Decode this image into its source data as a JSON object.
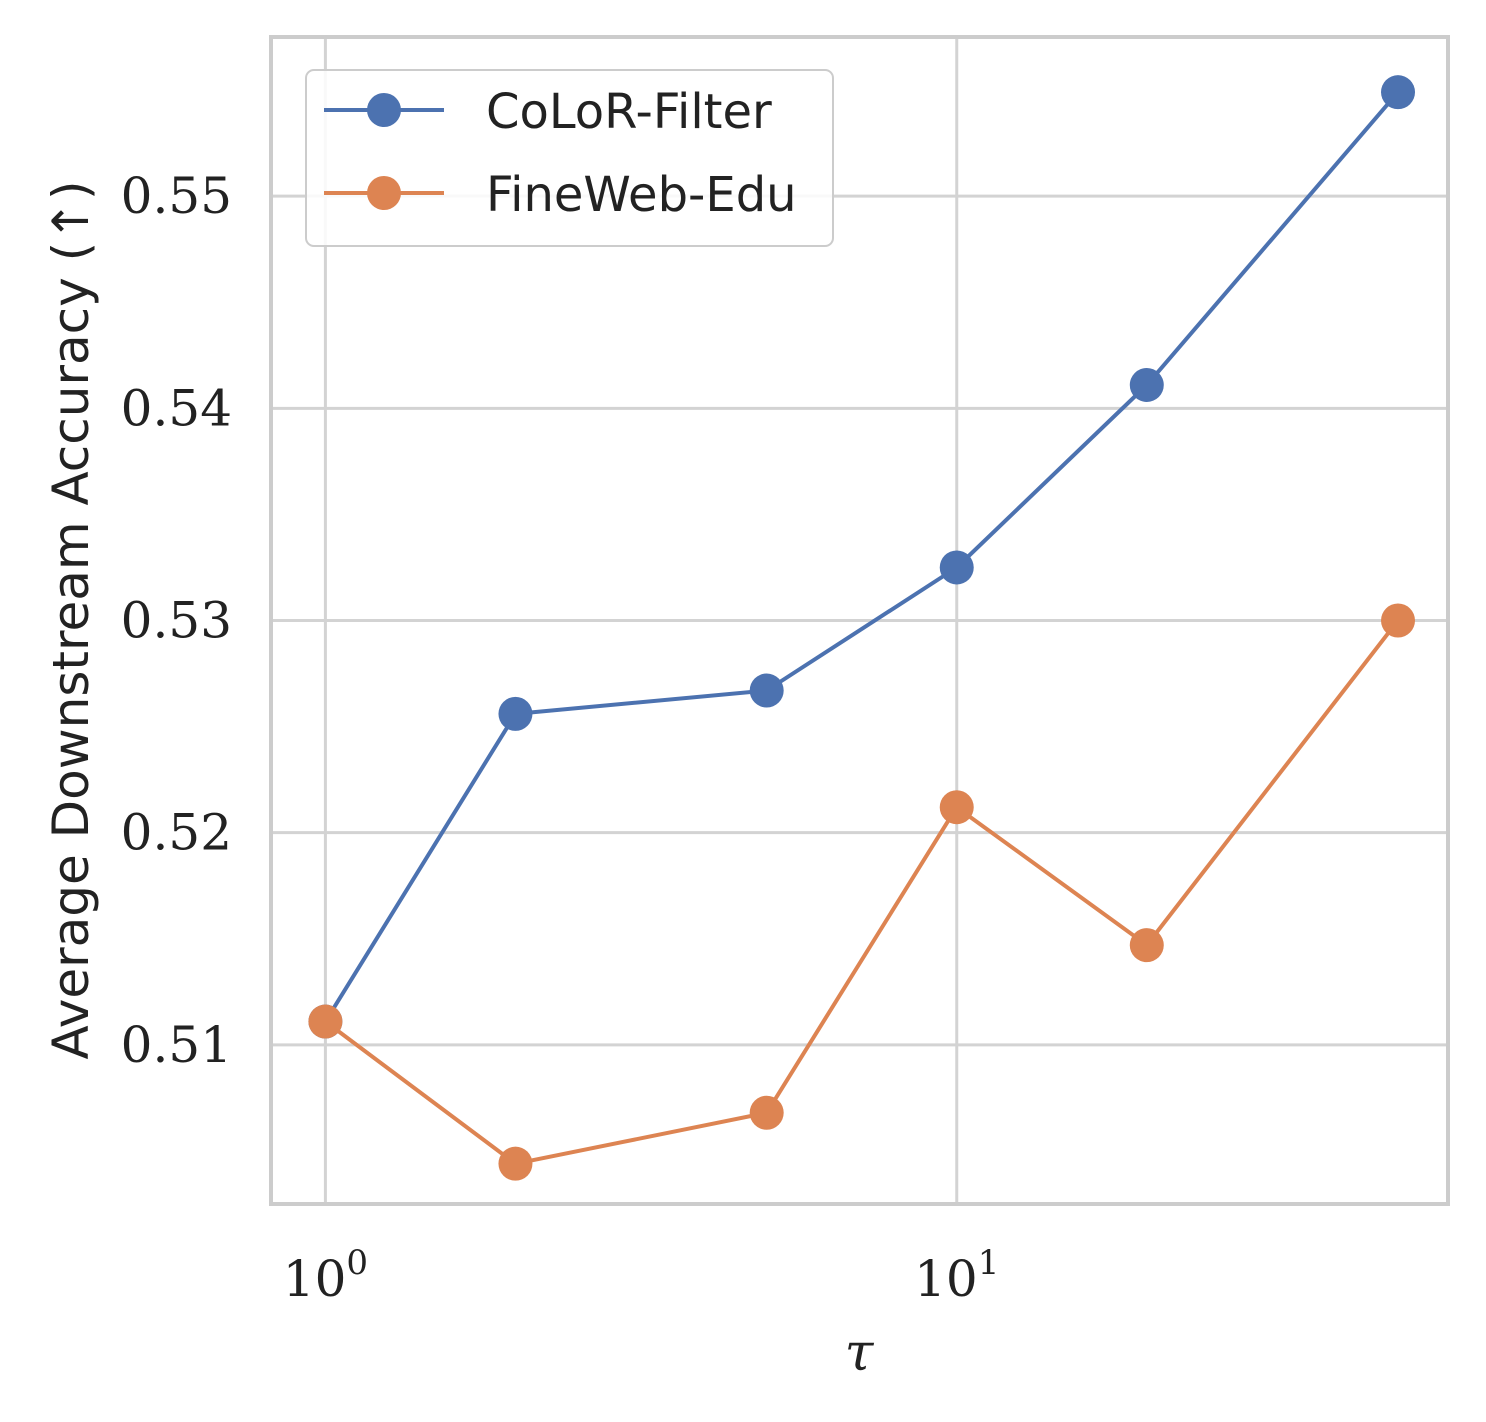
{
  "chart_data": {
    "type": "line",
    "title": "",
    "xlabel": "τ",
    "ylabel": "Average Downstream Accuracy (↑)",
    "x_scale": "log",
    "x": [
      1,
      2,
      5,
      10,
      20,
      50
    ],
    "x_tick_values": [
      1,
      10
    ],
    "x_tick_labels": [
      {
        "base": "10",
        "exp": "0"
      },
      {
        "base": "10",
        "exp": "1"
      }
    ],
    "y_ticks": [
      0.51,
      0.52,
      0.53,
      0.54,
      0.55
    ],
    "y_tick_labels": [
      "0.51",
      "0.52",
      "0.53",
      "0.54",
      "0.55"
    ],
    "xlim": [
      0.82,
      60
    ],
    "ylim": [
      0.5025,
      0.5575
    ],
    "grid": true,
    "legend_position": "top-left",
    "series": [
      {
        "name": "CoLoR-Filter",
        "color": "#4c72b0",
        "values": [
          0.5111,
          0.5256,
          0.5267,
          0.5325,
          0.5411,
          0.5549
        ]
      },
      {
        "name": "FineWeb-Edu",
        "color": "#dd8452",
        "values": [
          0.5111,
          0.5044,
          0.5068,
          0.5212,
          0.5147,
          0.53
        ]
      }
    ]
  }
}
